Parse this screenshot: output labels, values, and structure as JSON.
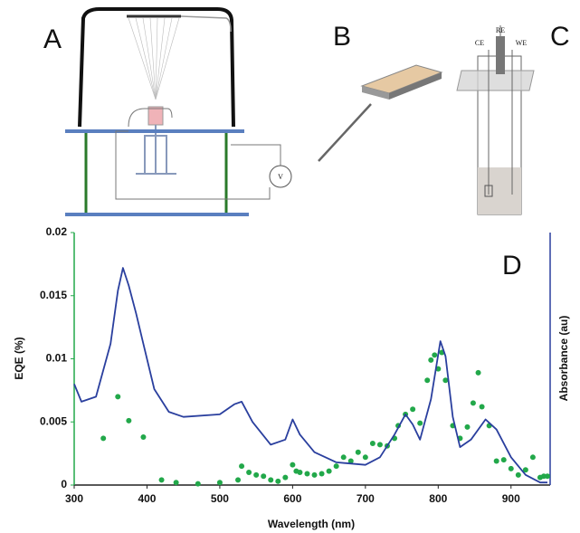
{
  "panels": {
    "a": "A",
    "b": "B",
    "c": "C",
    "d": "D",
    "voltmeter": "V",
    "ce": "CE",
    "re": "RE",
    "we": "WE"
  },
  "chart_data": {
    "type": "line",
    "xlabel": "Wavelength (nm)",
    "ylabel": "EQE (%)",
    "y2label": "Absorbance (au)",
    "xlim": [
      300,
      950
    ],
    "xticks": [
      300,
      400,
      500,
      600,
      700,
      800,
      900
    ],
    "ylim": [
      0,
      0.02
    ],
    "yticks": [
      0,
      0.005,
      0.01,
      0.015,
      0.02
    ],
    "y2lim": [
      0,
      1
    ],
    "series": [
      {
        "type": "scatter",
        "color": "#22a84a",
        "x": [
          340,
          360,
          375,
          395,
          420,
          440,
          470,
          500,
          525,
          530,
          540,
          550,
          560,
          570,
          580,
          590,
          600,
          605,
          610,
          620,
          630,
          640,
          650,
          660,
          670,
          680,
          690,
          700,
          710,
          720,
          730,
          740,
          745,
          755,
          765,
          775,
          785,
          790,
          795,
          800,
          805,
          810,
          820,
          830,
          840,
          848,
          855,
          860,
          870,
          880,
          890,
          900,
          910,
          920,
          930,
          940,
          945,
          950
        ],
        "values": [
          0.0037,
          0.007,
          0.0051,
          0.0038,
          0.0004,
          0.0002,
          0.0001,
          0.0002,
          0.0004,
          0.0015,
          0.001,
          0.0008,
          0.0007,
          0.0004,
          0.0003,
          0.0006,
          0.0016,
          0.0011,
          0.001,
          0.0009,
          0.0008,
          0.0009,
          0.0011,
          0.0015,
          0.0022,
          0.0019,
          0.0026,
          0.0022,
          0.0033,
          0.0032,
          0.0031,
          0.0037,
          0.0047,
          0.0056,
          0.006,
          0.0049,
          0.0083,
          0.0099,
          0.0103,
          0.0092,
          0.0105,
          0.0083,
          0.0047,
          0.0037,
          0.0046,
          0.0065,
          0.0089,
          0.0062,
          0.0047,
          0.0019,
          0.002,
          0.0013,
          0.0008,
          0.0012,
          0.0022,
          0.0006,
          0.0007,
          0.0007
        ]
      },
      {
        "type": "line",
        "axis": "y2",
        "color": "#2a3f9e",
        "x": [
          300,
          310,
          330,
          350,
          360,
          367,
          375,
          385,
          395,
          410,
          430,
          450,
          500,
          520,
          530,
          545,
          570,
          590,
          600,
          610,
          630,
          660,
          700,
          720,
          740,
          755,
          765,
          775,
          790,
          803,
          810,
          820,
          830,
          845,
          865,
          880,
          900,
          920,
          940,
          950
        ],
        "values": [
          0.4,
          0.33,
          0.35,
          0.56,
          0.77,
          0.86,
          0.79,
          0.68,
          0.56,
          0.38,
          0.29,
          0.27,
          0.28,
          0.32,
          0.33,
          0.25,
          0.16,
          0.18,
          0.26,
          0.2,
          0.13,
          0.09,
          0.08,
          0.11,
          0.2,
          0.28,
          0.24,
          0.18,
          0.34,
          0.57,
          0.51,
          0.27,
          0.15,
          0.18,
          0.26,
          0.22,
          0.11,
          0.04,
          0.01,
          0.01
        ]
      }
    ]
  }
}
